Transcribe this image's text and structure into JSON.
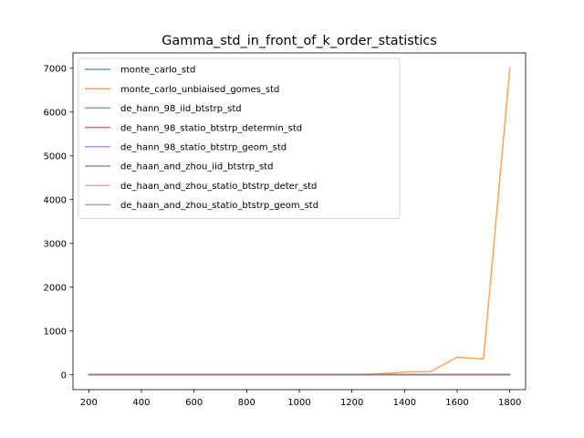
{
  "chart_data": {
    "type": "line",
    "title": "Gamma_std_in_front_of_k_order_statistics",
    "xlabel": "",
    "ylabel": "",
    "xlim": [
      140,
      1860
    ],
    "ylim": [
      -340,
      7350
    ],
    "xticks": [
      200,
      400,
      600,
      800,
      1000,
      1200,
      1400,
      1600,
      1800
    ],
    "yticks": [
      0,
      1000,
      2000,
      3000,
      4000,
      5000,
      6000,
      7000
    ],
    "grid": false,
    "legend_position": "upper-left",
    "x": [
      200,
      300,
      400,
      500,
      600,
      700,
      800,
      900,
      1000,
      1100,
      1200,
      1300,
      1400,
      1500,
      1600,
      1700,
      1800
    ],
    "series": [
      {
        "name": "monte_carlo_std",
        "color": "#1f77b4",
        "values": [
          0.2,
          0.2,
          0.2,
          0.2,
          0.2,
          0.2,
          0.2,
          0.2,
          0.2,
          0.2,
          0.2,
          0.2,
          0.2,
          0.2,
          0.2,
          0.2,
          0.2
        ]
      },
      {
        "name": "monte_carlo_unbiaised_gomes_std",
        "color": "#ff7f0e",
        "values": [
          0.5,
          0.5,
          0.5,
          0.5,
          0.5,
          0.5,
          0.5,
          0.5,
          1,
          2,
          5,
          20,
          60,
          75,
          400,
          360,
          7000
        ]
      },
      {
        "name": "de_hann_98_iid_btstrp_std",
        "color": "#2ca02c",
        "values": [
          0.1,
          0.1,
          0.1,
          0.1,
          0.1,
          0.1,
          0.1,
          0.1,
          0.1,
          0.1,
          0.1,
          0.1,
          0.1,
          0.1,
          0.1,
          0.1,
          0.1
        ]
      },
      {
        "name": "de_hann_98_statio_btstrp_determin_std",
        "color": "#d62728",
        "values": [
          0.1,
          0.1,
          0.1,
          0.1,
          0.1,
          0.1,
          0.1,
          0.1,
          0.1,
          0.1,
          0.1,
          0.1,
          0.1,
          0.1,
          0.1,
          0.1,
          0.1
        ]
      },
      {
        "name": "de_hann_98_statio_btstrp_geom_std",
        "color": "#9467bd",
        "values": [
          0.1,
          0.1,
          0.1,
          0.1,
          0.1,
          0.1,
          0.1,
          0.1,
          0.1,
          0.1,
          0.1,
          0.1,
          0.1,
          0.1,
          0.1,
          0.1,
          0.1
        ]
      },
      {
        "name": "de_haan_and_zhou_iid_btstrp_std",
        "color": "#8c564b",
        "values": [
          0.1,
          0.1,
          0.1,
          0.1,
          0.1,
          0.1,
          0.1,
          0.1,
          0.1,
          0.1,
          0.1,
          0.1,
          0.1,
          0.1,
          0.1,
          0.1,
          0.1
        ]
      },
      {
        "name": "de_haan_and_zhou_statio_btstrp_deter_std",
        "color": "#e377c2",
        "values": [
          0.1,
          0.1,
          0.1,
          0.1,
          0.1,
          0.1,
          0.1,
          0.1,
          0.1,
          0.1,
          0.1,
          0.1,
          0.1,
          0.1,
          0.1,
          0.1,
          0.1
        ]
      },
      {
        "name": "de_haan_and_zhou_statio_btstrp_geom_std",
        "color": "#7f7f7f",
        "values": [
          0.1,
          0.1,
          0.1,
          0.1,
          0.1,
          0.1,
          0.1,
          0.1,
          0.1,
          0.1,
          0.1,
          0.1,
          0.1,
          0.1,
          0.1,
          0.1,
          0.1
        ]
      }
    ]
  }
}
